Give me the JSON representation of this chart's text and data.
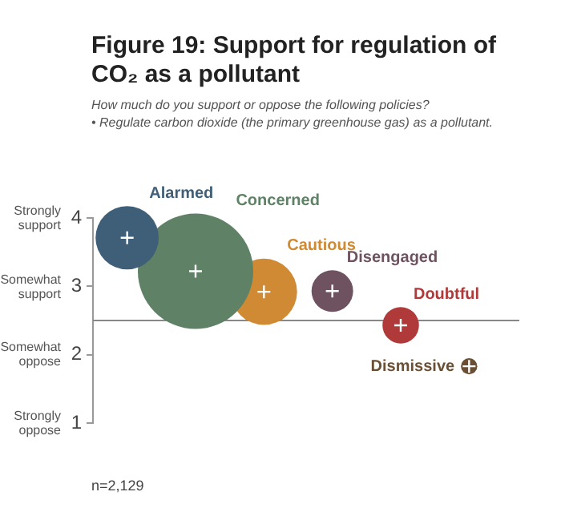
{
  "chart_data": {
    "type": "bubble",
    "title": "Figure 19:  Support for regulation of CO₂ as a pollutant",
    "subtitle": "How much do you support or oppose the following policies?\n• Regulate carbon dioxide (the primary greenhouse gas) as a pollutant.",
    "categories": [
      null,
      null,
      null,
      null,
      null,
      null
    ],
    "series": [
      {
        "name": "Alarmed",
        "color": "#3f5f78",
        "values": [
          3.71,
          null,
          null,
          null,
          null,
          null
        ],
        "sizes": [
          0.3,
          null,
          null,
          null,
          null,
          null
        ]
      },
      {
        "name": "Concerned",
        "color": "#5f8266",
        "values": [
          null,
          3.22,
          null,
          null,
          null,
          null
        ],
        "sizes": [
          null,
          1,
          null,
          null,
          null,
          null
        ]
      },
      {
        "name": "Cautious",
        "color": "#cf8a33",
        "values": [
          null,
          null,
          2.92,
          null,
          null,
          null
        ],
        "sizes": [
          null,
          null,
          0.33,
          null,
          null,
          null
        ]
      },
      {
        "name": "Disengaged",
        "color": "#6e5260",
        "values": [
          null,
          null,
          null,
          2.93,
          null,
          null
        ],
        "sizes": [
          null,
          null,
          null,
          0.13,
          null,
          null
        ]
      },
      {
        "name": "Doubtful",
        "color": "#b03a3a",
        "values": [
          null,
          null,
          null,
          null,
          2.43,
          null
        ],
        "sizes": [
          null,
          null,
          null,
          null,
          0.1,
          null
        ]
      },
      {
        "name": "Dismissive",
        "color": "#6b4f34",
        "values": [
          null,
          null,
          null,
          null,
          null,
          1.83
        ],
        "sizes": [
          null,
          null,
          null,
          null,
          null,
          0.02
        ]
      }
    ],
    "ylim": [
      1,
      4
    ],
    "yticks": [
      1,
      2,
      3,
      4
    ],
    "tick_labels": "y",
    "grid": false,
    "legend": false,
    "ref_lines": [
      {
        "axis": "y",
        "value": 2.5,
        "color": "#888888"
      }
    ],
    "annotations": [
      "Strongly support",
      "Somewhat support",
      "Somewhat oppose",
      "Strongly oppose",
      "n=2,129"
    ]
  }
}
